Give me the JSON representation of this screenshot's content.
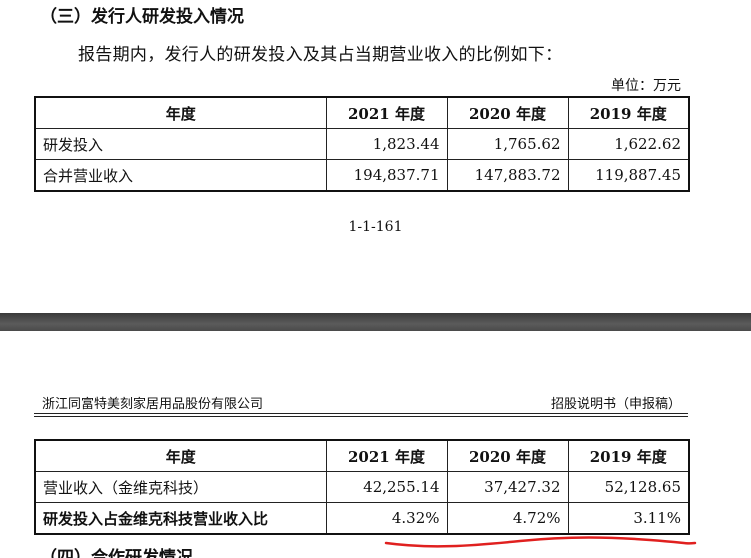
{
  "top": {
    "heading": "（三）发行人研发投入情况",
    "paragraph": "报告期内，发行人的研发投入及其占当期营业收入的比例如下：",
    "unit": "单位：万元",
    "table": {
      "headers": [
        "年度",
        "2021 年度",
        "2020 年度",
        "2019 年度"
      ],
      "rows": [
        [
          "研发投入",
          "1,823.44",
          "1,765.62",
          "1,622.62"
        ],
        [
          "合并营业收入",
          "194,837.71",
          "147,883.72",
          "119,887.45"
        ]
      ]
    },
    "page_number": "1-1-161"
  },
  "bottom": {
    "company": "浙江同富特美刻家居用品股份有限公司",
    "doc_type": "招股说明书（申报稿）",
    "table": {
      "headers": [
        "年度",
        "2021 年度",
        "2020 年度",
        "2019 年度"
      ],
      "rows": [
        [
          "营业收入（金维克科技）",
          "42,255.14",
          "37,427.32",
          "52,128.65"
        ],
        [
          "研发投入占金维克科技营业收入比",
          "4.32%",
          "4.72%",
          "3.11%"
        ]
      ]
    },
    "next_heading": "（四）合作研发情况"
  },
  "colors": {
    "annotation": "#e0201f",
    "divider": "#4a4a4a"
  }
}
